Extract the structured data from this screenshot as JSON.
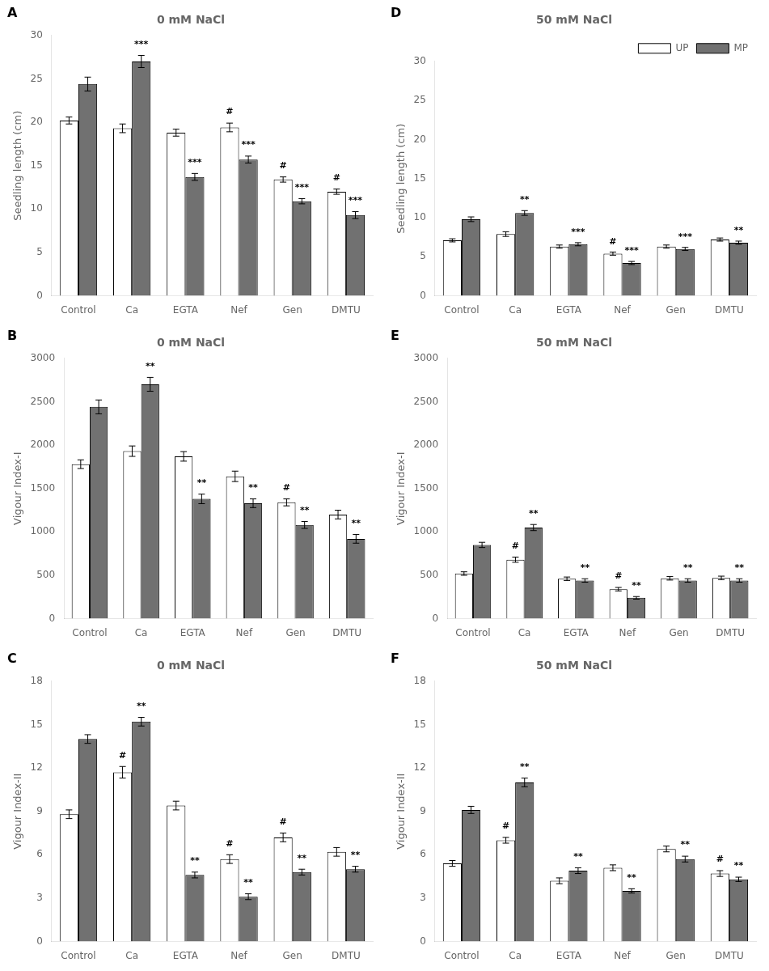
{
  "chart_data": [
    {
      "type": "bar",
      "panel_label": "A",
      "title": "0 mM NaCl",
      "y_label": "Seedling length (cm)",
      "categories": [
        "Control",
        "Ca",
        "EGTA",
        "Nef",
        "Gen",
        "DMTU"
      ],
      "ylim": [
        0,
        30
      ],
      "yticks": [
        0,
        5,
        10,
        15,
        20,
        25,
        30
      ],
      "grid": false,
      "series": [
        {
          "name": "UP",
          "color": "white",
          "values": [
            20.2,
            19.3,
            18.8,
            19.4,
            13.4,
            12.0
          ],
          "errors": [
            0.4,
            0.5,
            0.4,
            0.5,
            0.3,
            0.3
          ],
          "annotations": [
            null,
            null,
            null,
            "#",
            "#",
            "#"
          ]
        },
        {
          "name": "MP",
          "color": "#717171",
          "values": [
            24.4,
            27.0,
            13.7,
            15.7,
            10.9,
            9.3
          ],
          "errors": [
            0.8,
            0.7,
            0.4,
            0.4,
            0.3,
            0.4
          ],
          "annotations": [
            null,
            "***",
            "***",
            "***",
            "***",
            "***"
          ]
        }
      ]
    },
    {
      "type": "bar",
      "panel_label": "B",
      "title": "0 mM NaCl",
      "y_label": "Vigour Index-I",
      "categories": [
        "Control",
        "Ca",
        "EGTA",
        "Nef",
        "Gen",
        "DMTU"
      ],
      "ylim": [
        0,
        3000
      ],
      "yticks": [
        0,
        500,
        1000,
        1500,
        2000,
        2500,
        3000
      ],
      "grid": false,
      "series": [
        {
          "name": "UP",
          "color": "white",
          "values": [
            1780,
            1930,
            1870,
            1640,
            1340,
            1200
          ],
          "errors": [
            50,
            60,
            55,
            60,
            40,
            50
          ],
          "annotations": [
            null,
            null,
            null,
            null,
            "#",
            null
          ]
        },
        {
          "name": "MP",
          "color": "#717171",
          "values": [
            2440,
            2700,
            1380,
            1330,
            1080,
            920
          ],
          "errors": [
            80,
            80,
            55,
            50,
            40,
            50
          ],
          "annotations": [
            null,
            "**",
            "**",
            "**",
            "**",
            "**"
          ]
        }
      ]
    },
    {
      "type": "bar",
      "panel_label": "C",
      "title": "0 mM NaCl",
      "y_label": "Vigour Index-II",
      "categories": [
        "Control",
        "Ca",
        "EGTA",
        "Nef",
        "Gen",
        "DMTU"
      ],
      "ylim": [
        0,
        18
      ],
      "yticks": [
        0,
        3,
        6,
        9,
        12,
        15,
        18
      ],
      "grid": false,
      "series": [
        {
          "name": "UP",
          "color": "white",
          "values": [
            8.8,
            11.7,
            9.4,
            5.7,
            7.2,
            6.2
          ],
          "errors": [
            0.3,
            0.4,
            0.3,
            0.3,
            0.3,
            0.3
          ],
          "annotations": [
            null,
            "#",
            null,
            "#",
            "#",
            null
          ]
        },
        {
          "name": "MP",
          "color": "#717171",
          "values": [
            14.0,
            15.2,
            4.6,
            3.1,
            4.8,
            5.0
          ],
          "errors": [
            0.3,
            0.3,
            0.2,
            0.2,
            0.2,
            0.2
          ],
          "annotations": [
            null,
            "**",
            "**",
            "**",
            "**",
            "**"
          ]
        }
      ]
    },
    {
      "type": "bar",
      "panel_label": "D",
      "title": "50 mM NaCl",
      "y_label": "Seedling length (cm)",
      "categories": [
        "Control",
        "Ca",
        "EGTA",
        "Nef",
        "Gen",
        "DMTU"
      ],
      "ylim": [
        0,
        30
      ],
      "yticks": [
        0,
        5,
        10,
        15,
        20,
        25,
        30
      ],
      "grid": false,
      "legend": "upper right",
      "series": [
        {
          "name": "UP",
          "color": "white",
          "values": [
            7.1,
            7.9,
            6.3,
            5.4,
            6.3,
            7.2
          ],
          "errors": [
            0.2,
            0.3,
            0.2,
            0.2,
            0.2,
            0.2
          ],
          "annotations": [
            null,
            null,
            null,
            "#",
            null,
            null
          ]
        },
        {
          "name": "MP",
          "color": "#717171",
          "values": [
            9.8,
            10.6,
            6.6,
            4.2,
            6.0,
            6.8
          ],
          "errors": [
            0.3,
            0.3,
            0.2,
            0.2,
            0.2,
            0.2
          ],
          "annotations": [
            null,
            "**",
            "***",
            "***",
            "***",
            "**"
          ]
        }
      ]
    },
    {
      "type": "bar",
      "panel_label": "E",
      "title": "50 mM NaCl",
      "y_label": "Vigour Index-I",
      "categories": [
        "Control",
        "Ca",
        "EGTA",
        "Nef",
        "Gen",
        "DMTU"
      ],
      "ylim": [
        0,
        3000
      ],
      "yticks": [
        0,
        500,
        1000,
        1500,
        2000,
        2500,
        3000
      ],
      "grid": false,
      "series": [
        {
          "name": "UP",
          "color": "white",
          "values": [
            520,
            680,
            460,
            340,
            465,
            470
          ],
          "errors": [
            20,
            30,
            20,
            20,
            20,
            20
          ],
          "annotations": [
            null,
            "#",
            null,
            "#",
            null,
            null
          ]
        },
        {
          "name": "MP",
          "color": "#717171",
          "values": [
            850,
            1050,
            440,
            240,
            440,
            440
          ],
          "errors": [
            30,
            35,
            20,
            15,
            20,
            20
          ],
          "annotations": [
            null,
            "**",
            "**",
            "**",
            "**",
            "**"
          ]
        }
      ]
    },
    {
      "type": "bar",
      "panel_label": "F",
      "title": "50 mM NaCl",
      "y_label": "Vigour Index-II",
      "categories": [
        "Control",
        "Ca",
        "EGTA",
        "Nef",
        "Gen",
        "DMTU"
      ],
      "ylim": [
        0,
        18
      ],
      "yticks": [
        0,
        3,
        6,
        9,
        12,
        15,
        18
      ],
      "grid": false,
      "series": [
        {
          "name": "UP",
          "color": "white",
          "values": [
            5.4,
            7.0,
            4.2,
            5.1,
            6.4,
            4.7
          ],
          "errors": [
            0.2,
            0.2,
            0.2,
            0.2,
            0.2,
            0.2
          ],
          "annotations": [
            null,
            "#",
            null,
            null,
            null,
            "#"
          ]
        },
        {
          "name": "MP",
          "color": "#717171",
          "values": [
            9.1,
            11.0,
            4.9,
            3.5,
            5.7,
            4.3
          ],
          "errors": [
            0.25,
            0.3,
            0.2,
            0.15,
            0.2,
            0.15
          ],
          "annotations": [
            null,
            "**",
            "**",
            "**",
            "**",
            "**"
          ]
        }
      ]
    }
  ]
}
